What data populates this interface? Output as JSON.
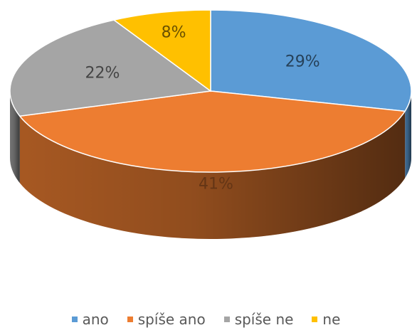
{
  "chart_data": {
    "type": "pie",
    "title": "",
    "three_d": true,
    "start_angle_deg": 0,
    "direction": "clockwise",
    "legend_position": "bottom",
    "slices": [
      {
        "label": "ano",
        "value": 29,
        "value_label": "29%",
        "color": "#5B9BD5"
      },
      {
        "label": "spíše ano",
        "value": 41,
        "value_label": "41%",
        "color": "#ED7D31"
      },
      {
        "label": "spíše ne",
        "value": 22,
        "value_label": "22%",
        "color": "#A5A5A5"
      },
      {
        "label": "ne",
        "value": 8,
        "value_label": "8%",
        "color": "#FFC000"
      }
    ]
  }
}
